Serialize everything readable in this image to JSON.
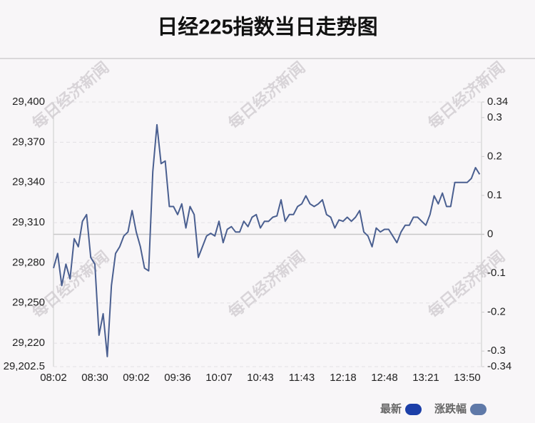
{
  "chart_data": {
    "type": "line",
    "title": "日经225指数当日走势图",
    "watermark": "每日经济新闻",
    "x": [
      "08:02",
      null,
      null,
      null,
      null,
      null,
      null,
      null,
      null,
      null,
      "08:30",
      null,
      null,
      null,
      null,
      null,
      null,
      null,
      null,
      null,
      "09:02",
      null,
      null,
      null,
      null,
      null,
      null,
      null,
      null,
      null,
      "09:36",
      null,
      null,
      null,
      null,
      null,
      null,
      null,
      null,
      null,
      "10:07",
      null,
      null,
      null,
      null,
      null,
      null,
      null,
      null,
      null,
      "10:43",
      null,
      null,
      null,
      null,
      null,
      null,
      null,
      null,
      null,
      "11:43",
      null,
      null,
      null,
      null,
      null,
      null,
      null,
      null,
      null,
      "12:18",
      null,
      null,
      null,
      null,
      null,
      null,
      null,
      null,
      null,
      "12:48",
      null,
      null,
      null,
      null,
      null,
      null,
      null,
      null,
      null,
      "13:21",
      null,
      null,
      null,
      null,
      null,
      null,
      null,
      null,
      null,
      "13:50",
      null,
      null,
      null
    ],
    "series": [
      {
        "name": "最新",
        "color": "#4a5f90",
        "values": [
          29276,
          29287,
          29263,
          29279,
          29268,
          29298,
          29292,
          29311,
          29316,
          29284,
          29279,
          29226,
          29242,
          29210,
          29263,
          29287,
          29292,
          29300,
          29303,
          29319,
          29303,
          29292,
          29276,
          29274,
          29348,
          29383,
          29354,
          29356,
          29322,
          29322,
          29316,
          29324,
          29306,
          29322,
          29316,
          29284,
          29292,
          29300,
          29302,
          29300,
          29311,
          29295,
          29305,
          29307,
          29303,
          29303,
          29311,
          29307,
          29314,
          29316,
          29306,
          29311,
          29311,
          29314,
          29315,
          29327,
          29311,
          29316,
          29316,
          29322,
          29324,
          29330,
          29324,
          29322,
          29324,
          29327,
          29316,
          29314,
          29306,
          29312,
          29311,
          29314,
          29311,
          29314,
          29319,
          29303,
          29300,
          29292,
          29306,
          29303,
          29305,
          29305,
          29300,
          29295,
          29303,
          29308,
          29308,
          29314,
          29314,
          29311,
          29308,
          29316,
          29330,
          29324,
          29332,
          29322,
          29322,
          29340,
          29340,
          29340,
          29340,
          29343,
          29351,
          29346
        ]
      },
      {
        "name": "涨跌幅",
        "color": "#5f79a8"
      }
    ],
    "ylim": [
      29202.5,
      29400
    ],
    "yticks": [
      {
        "value": 29400,
        "label": "29,400"
      },
      {
        "value": 29370,
        "label": "29,370"
      },
      {
        "value": 29340,
        "label": "29,340"
      },
      {
        "value": 29310,
        "label": "29,310"
      },
      {
        "value": 29280,
        "label": "29,280"
      },
      {
        "value": 29250,
        "label": "29,250"
      },
      {
        "value": 29220,
        "label": "29,220"
      },
      {
        "value": 29202.5,
        "label": "29,202.5"
      }
    ],
    "y2lim": [
      -0.34,
      0.34
    ],
    "y2ticks": [
      0.34,
      0.3,
      0.2,
      0.1,
      0,
      -0.1,
      -0.2,
      -0.3,
      -0.34
    ],
    "grid": true
  }
}
